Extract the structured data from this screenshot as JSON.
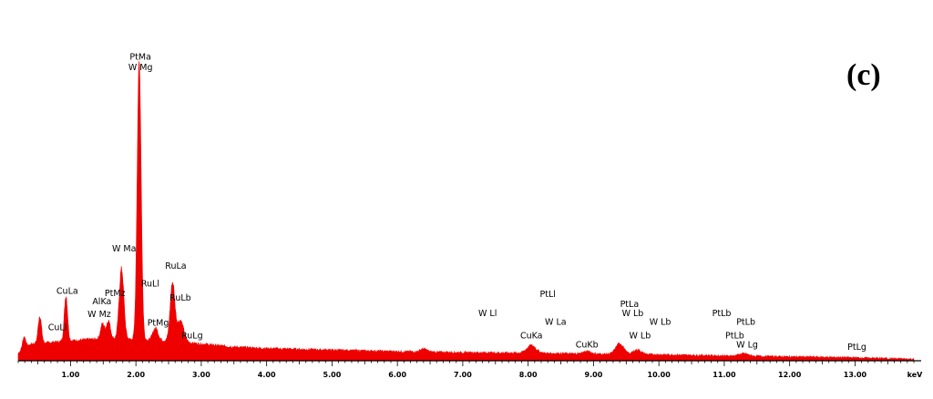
{
  "panel_label": "(c)",
  "colors": {
    "spectrum": "#ee0000",
    "axis": "#000000",
    "background": "#ffffff"
  },
  "chart_data": {
    "type": "area",
    "title": "",
    "xlabel": "",
    "ylabel": "",
    "x_unit_label": "keV",
    "xlim": [
      0.2,
      13.9
    ],
    "ylim": [
      0,
      100
    ],
    "grid": false,
    "x_ticks": [
      {
        "value": 1.0,
        "label": "1.00"
      },
      {
        "value": 2.0,
        "label": "2.00"
      },
      {
        "value": 3.0,
        "label": "3.00"
      },
      {
        "value": 4.0,
        "label": "4.00"
      },
      {
        "value": 5.0,
        "label": "5.00"
      },
      {
        "value": 6.0,
        "label": "6.00"
      },
      {
        "value": 7.0,
        "label": "7.00"
      },
      {
        "value": 8.0,
        "label": "8.00"
      },
      {
        "value": 9.0,
        "label": "9.00"
      },
      {
        "value": 10.0,
        "label": "10.00"
      },
      {
        "value": 11.0,
        "label": "11.00"
      },
      {
        "value": 12.0,
        "label": "12.00"
      },
      {
        "value": 13.0,
        "label": "13.00"
      }
    ],
    "background": [
      [
        0.2,
        2.5
      ],
      [
        0.4,
        5.5
      ],
      [
        0.7,
        6
      ],
      [
        1.0,
        6.5
      ],
      [
        1.3,
        7
      ],
      [
        1.6,
        7.2
      ],
      [
        2.0,
        7
      ],
      [
        2.5,
        6.5
      ],
      [
        3.0,
        5.5
      ],
      [
        3.5,
        4.5
      ],
      [
        4.0,
        4
      ],
      [
        5.0,
        3.5
      ],
      [
        6.0,
        3
      ],
      [
        7.0,
        2.7
      ],
      [
        8.0,
        2.5
      ],
      [
        9.0,
        2.2
      ],
      [
        10.0,
        2
      ],
      [
        11.0,
        1.6
      ],
      [
        12.0,
        1.3
      ],
      [
        13.0,
        1
      ],
      [
        13.9,
        0.5
      ]
    ],
    "peaks": [
      {
        "x": 0.29,
        "height": 4,
        "width": 0.025
      },
      {
        "x": 0.53,
        "height": 9,
        "width": 0.025
      },
      {
        "x": 0.93,
        "height": 15,
        "width": 0.025
      },
      {
        "x": 1.49,
        "height": 5,
        "width": 0.03
      },
      {
        "x": 1.58,
        "height": 6,
        "width": 0.03
      },
      {
        "x": 1.78,
        "height": 23,
        "width": 0.035
      },
      {
        "x": 2.05,
        "height": 91,
        "width": 0.03
      },
      {
        "x": 2.3,
        "height": 4,
        "width": 0.04
      },
      {
        "x": 2.56,
        "height": 19,
        "width": 0.035
      },
      {
        "x": 2.68,
        "height": 7,
        "width": 0.05
      },
      {
        "x": 6.4,
        "height": 1,
        "width": 0.05
      },
      {
        "x": 8.05,
        "height": 2.5,
        "width": 0.07
      },
      {
        "x": 8.9,
        "height": 0.8,
        "width": 0.06
      },
      {
        "x": 9.4,
        "height": 3.5,
        "width": 0.06
      },
      {
        "x": 9.67,
        "height": 1.5,
        "width": 0.06
      },
      {
        "x": 11.3,
        "height": 0.8,
        "width": 0.07
      }
    ],
    "annotations": [
      {
        "text": "PtMa",
        "x": 2.07,
        "y": 99
      },
      {
        "text": "W Mg",
        "x": 2.07,
        "y": 95.5
      },
      {
        "text": "CuLa",
        "x": 0.95,
        "y": 22
      },
      {
        "text": "CuLl",
        "x": 0.8,
        "y": 10
      },
      {
        "text": "AlKa",
        "x": 1.48,
        "y": 18.5
      },
      {
        "text": "W Mz",
        "x": 1.44,
        "y": 14.3
      },
      {
        "text": "PtMz",
        "x": 1.68,
        "y": 21.3
      },
      {
        "text": "W Ma",
        "x": 1.82,
        "y": 36
      },
      {
        "text": "RuLa",
        "x": 2.61,
        "y": 30.3
      },
      {
        "text": "RuLl",
        "x": 2.22,
        "y": 24.4
      },
      {
        "text": "RuLb",
        "x": 2.68,
        "y": 19.8
      },
      {
        "text": "PtMg",
        "x": 2.34,
        "y": 11.6
      },
      {
        "text": "RuLg",
        "x": 2.86,
        "y": 7.4
      },
      {
        "text": "W Ll",
        "x": 7.38,
        "y": 14.7
      },
      {
        "text": "PtLl",
        "x": 8.3,
        "y": 21
      },
      {
        "text": "W La",
        "x": 8.42,
        "y": 11.9
      },
      {
        "text": "CuKa",
        "x": 8.05,
        "y": 7.3
      },
      {
        "text": "CuKb",
        "x": 8.9,
        "y": 4.3
      },
      {
        "text": "PtLa",
        "x": 9.55,
        "y": 17.7
      },
      {
        "text": "W Lb",
        "x": 9.6,
        "y": 14.7
      },
      {
        "text": "W Lb",
        "x": 10.02,
        "y": 11.9
      },
      {
        "text": "W Lb",
        "x": 9.71,
        "y": 7.3
      },
      {
        "text": "PtLb",
        "x": 10.96,
        "y": 14.7
      },
      {
        "text": "PtLb",
        "x": 11.33,
        "y": 11.9
      },
      {
        "text": "PtLb",
        "x": 11.16,
        "y": 7.3
      },
      {
        "text": "W Lg",
        "x": 11.35,
        "y": 4.3
      },
      {
        "text": "PtLg",
        "x": 13.03,
        "y": 3.6
      }
    ]
  }
}
